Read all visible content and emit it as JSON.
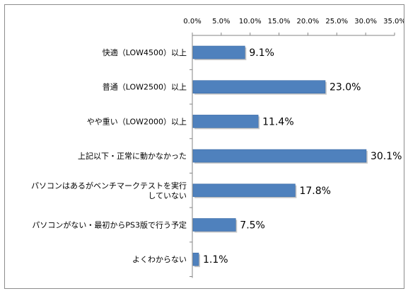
{
  "chart_data": {
    "type": "bar",
    "orientation": "horizontal",
    "title": "",
    "xlabel": "",
    "ylabel": "",
    "categories": [
      "快適（LOW4500）以上",
      "普通（LOW2500）以上",
      "やや重い（LOW2000）以上",
      "上記以下・正常に動かなかった",
      "パソコンはあるがベンチマークテストを実行していない",
      "パソコンがない・最初からPS3版で行う予定",
      "よくわからない"
    ],
    "category_lines": [
      [
        "快適（LOW4500）以上"
      ],
      [
        "普通（LOW2500）以上"
      ],
      [
        "やや重い（LOW2000）以上"
      ],
      [
        "上記以下・正常に動かなかった"
      ],
      [
        "パソコンはあるがベンチマークテストを実行",
        "していない"
      ],
      [
        "パソコンがない・最初からPS3版で行う予定"
      ],
      [
        "よくわからない"
      ]
    ],
    "values": [
      9.1,
      23.0,
      11.4,
      30.1,
      17.8,
      7.5,
      1.1
    ],
    "data_labels": [
      "9.1%",
      "23.0%",
      "11.4%",
      "30.1%",
      "17.8%",
      "7.5%",
      "1.1%"
    ],
    "xlim": [
      0,
      35
    ],
    "x_ticks": [
      0,
      5,
      10,
      15,
      20,
      25,
      30,
      35
    ],
    "x_tick_labels": [
      "0.0%",
      "5.0%",
      "10.0%",
      "15.0%",
      "20.0%",
      "25.0%",
      "30.0%",
      "35.0%"
    ],
    "x_axis_position": "top",
    "grid": false,
    "legend": "none",
    "bar_color": "#4f81bd",
    "bar_edge_color": "#3a6aa5",
    "axis_color": "#868686"
  }
}
